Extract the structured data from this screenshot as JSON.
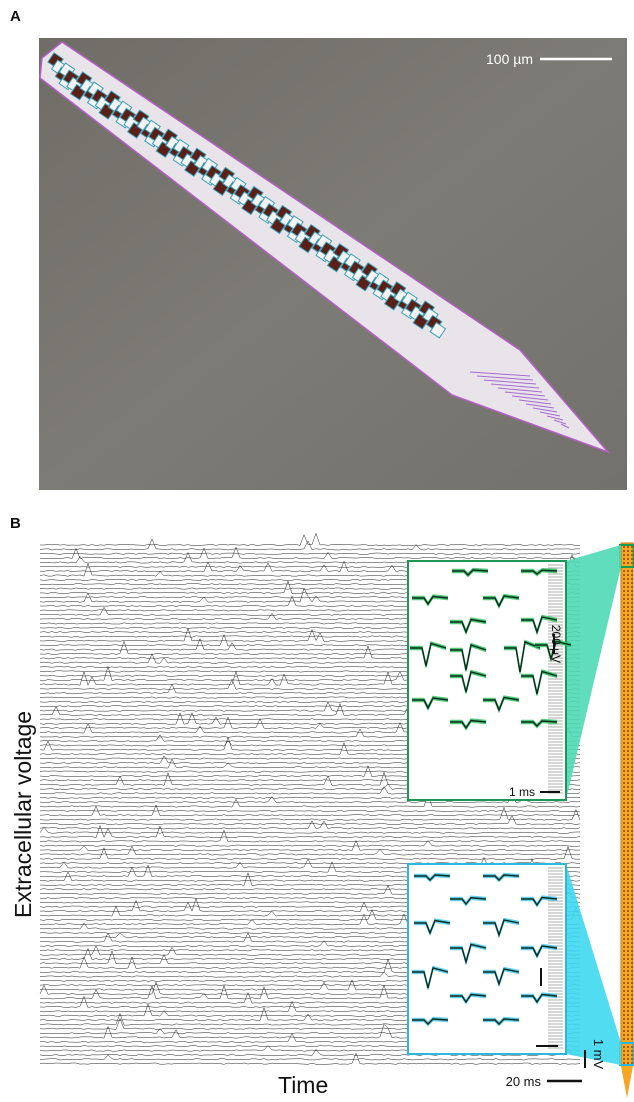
{
  "panels": {
    "a": {
      "label": "A",
      "scalebar_label": "100 µm"
    },
    "b": {
      "label": "B",
      "y_axis_label": "Extracellular voltage",
      "x_axis_label": "Time",
      "time_scale_label": "20 ms",
      "voltage_scale_label": "1 mV",
      "upper_inset": {
        "amplitude_scale_label": "200 µV",
        "time_scale_label": "1 ms"
      },
      "lower_inset": {
        "amplitude_scale_label": "",
        "time_scale_label": ""
      }
    }
  },
  "colors": {
    "upper_inset": "#1a9a50",
    "upper_fill": "#4fd9b5",
    "lower_inset": "#2ab8e0",
    "lower_fill": "#3fd8f0",
    "probe": "#f5a623",
    "probe_site": "#a85c00"
  },
  "icons": [
    "probe-shank-icon"
  ]
}
